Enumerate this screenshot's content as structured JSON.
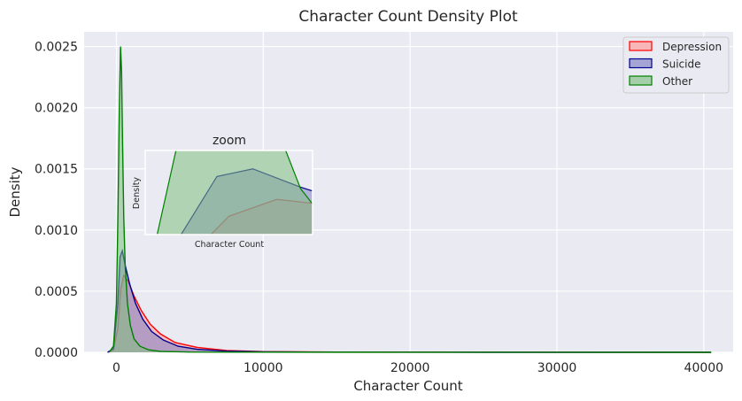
{
  "chart_data": {
    "type": "area",
    "title": "Character Count Density Plot",
    "xlabel": "Character Count",
    "ylabel": "Density",
    "xlim": [
      -2200,
      42000
    ],
    "ylim": [
      0,
      0.00262
    ],
    "xticks": [
      0,
      10000,
      20000,
      30000,
      40000
    ],
    "xtick_labels": [
      "0",
      "10000",
      "20000",
      "30000",
      "40000"
    ],
    "yticks": [
      0,
      0.0005,
      0.001,
      0.0015,
      0.002,
      0.0025
    ],
    "ytick_labels": [
      "0.0000",
      "0.0005",
      "0.0010",
      "0.0015",
      "0.0020",
      "0.0025"
    ],
    "grid": true,
    "legend_position": "top-right",
    "series": [
      {
        "name": "Depression",
        "color": "#ff0000",
        "fill": "#ff9999",
        "x": [
          -600,
          -200,
          100,
          300,
          500,
          800,
          1200,
          1700,
          2300,
          3000,
          4000,
          5500,
          7500,
          10000,
          15000,
          25000,
          40500
        ],
        "y": [
          0,
          2e-05,
          0.0002,
          0.00052,
          0.00063,
          0.00058,
          0.00046,
          0.00034,
          0.00023,
          0.00015,
          8e-05,
          4e-05,
          1.5e-05,
          6e-06,
          2e-06,
          1e-06,
          0
        ]
      },
      {
        "name": "Suicide",
        "color": "#00008b",
        "fill": "#7f7fc4",
        "x": [
          -600,
          -200,
          100,
          250,
          400,
          600,
          900,
          1300,
          1800,
          2400,
          3200,
          4200,
          5500,
          7500,
          10000,
          15000,
          25000,
          40500
        ],
        "y": [
          0,
          3e-05,
          0.0004,
          0.00078,
          0.00083,
          0.00071,
          0.00056,
          0.0004,
          0.00027,
          0.00017,
          0.0001,
          5e-05,
          2.5e-05,
          1e-05,
          4e-06,
          1e-06,
          0,
          0
        ]
      },
      {
        "name": "Other",
        "color": "#008000",
        "fill": "#80c080",
        "x": [
          -500,
          -200,
          0,
          100,
          200,
          280,
          350,
          420,
          500,
          600,
          750,
          950,
          1200,
          1600,
          2200,
          3000,
          5000,
          10000,
          40500
        ],
        "y": [
          0,
          5e-05,
          0.0004,
          0.0011,
          0.002,
          0.0025,
          0.0023,
          0.0017,
          0.0011,
          0.0007,
          0.0004,
          0.00022,
          0.00011,
          5e-05,
          2e-05,
          8e-06,
          2e-06,
          1e-06,
          0
        ]
      }
    ],
    "inset": {
      "title": "zoom",
      "xlabel": "Character Count",
      "ylabel": "Density"
    }
  }
}
